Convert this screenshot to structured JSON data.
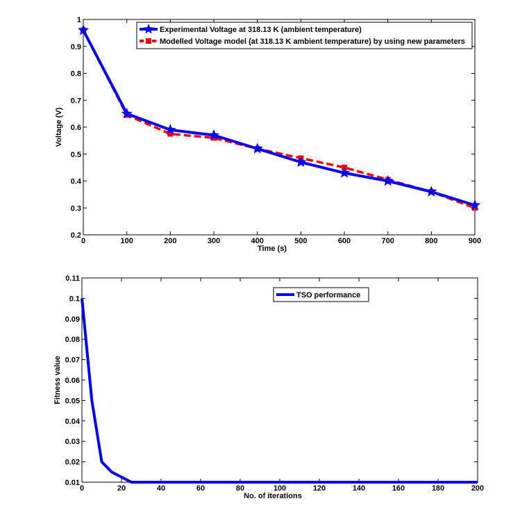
{
  "chart_data": [
    {
      "type": "line",
      "xlabel": "Time (s)",
      "ylabel": "Voltage (V)",
      "xlim": [
        0,
        900
      ],
      "ylim": [
        0.2,
        1
      ],
      "xticks": [
        0,
        100,
        200,
        300,
        400,
        500,
        600,
        700,
        800,
        900
      ],
      "yticks": [
        0.2,
        0.3,
        0.4,
        0.5,
        0.6,
        0.7,
        0.8,
        0.9,
        1
      ],
      "legend_position": "top-right",
      "series": [
        {
          "name": "Experimental Voltage at 318.13 K (ambient temperature)",
          "color": "#0000ff",
          "line_style": "solid",
          "marker": "star",
          "x": [
            0,
            100,
            200,
            300,
            400,
            500,
            600,
            700,
            800,
            900
          ],
          "values": [
            0.96,
            0.65,
            0.59,
            0.57,
            0.52,
            0.47,
            0.43,
            0.4,
            0.36,
            0.31
          ]
        },
        {
          "name": "Modelled Voltage model (at 318.13 K ambient temperature) by using new parameters",
          "color": "#ff0000",
          "line_style": "dashed",
          "marker": "square",
          "x": [
            0,
            100,
            200,
            300,
            400,
            500,
            600,
            700,
            800,
            900
          ],
          "values": [
            0.96,
            0.645,
            0.575,
            0.56,
            0.52,
            0.485,
            0.45,
            0.405,
            0.36,
            0.3
          ]
        }
      ]
    },
    {
      "type": "line",
      "xlabel": "No. of iterations",
      "ylabel": "Fitness value",
      "xlim": [
        0,
        200
      ],
      "ylim": [
        0.01,
        0.11
      ],
      "xticks": [
        0,
        20,
        40,
        60,
        80,
        100,
        120,
        140,
        160,
        180,
        200
      ],
      "yticks": [
        0.01,
        0.02,
        0.03,
        0.04,
        0.05,
        0.06,
        0.07,
        0.08,
        0.09,
        0.1,
        0.11
      ],
      "legend_position": "top-right",
      "series": [
        {
          "name": "TSO performance",
          "color": "#0000ff",
          "line_style": "solid",
          "marker": "none",
          "x": [
            0,
            5,
            10,
            15,
            20,
            25,
            200
          ],
          "values": [
            0.1,
            0.05,
            0.02,
            0.015,
            0.0125,
            0.01,
            0.01
          ]
        }
      ]
    }
  ]
}
